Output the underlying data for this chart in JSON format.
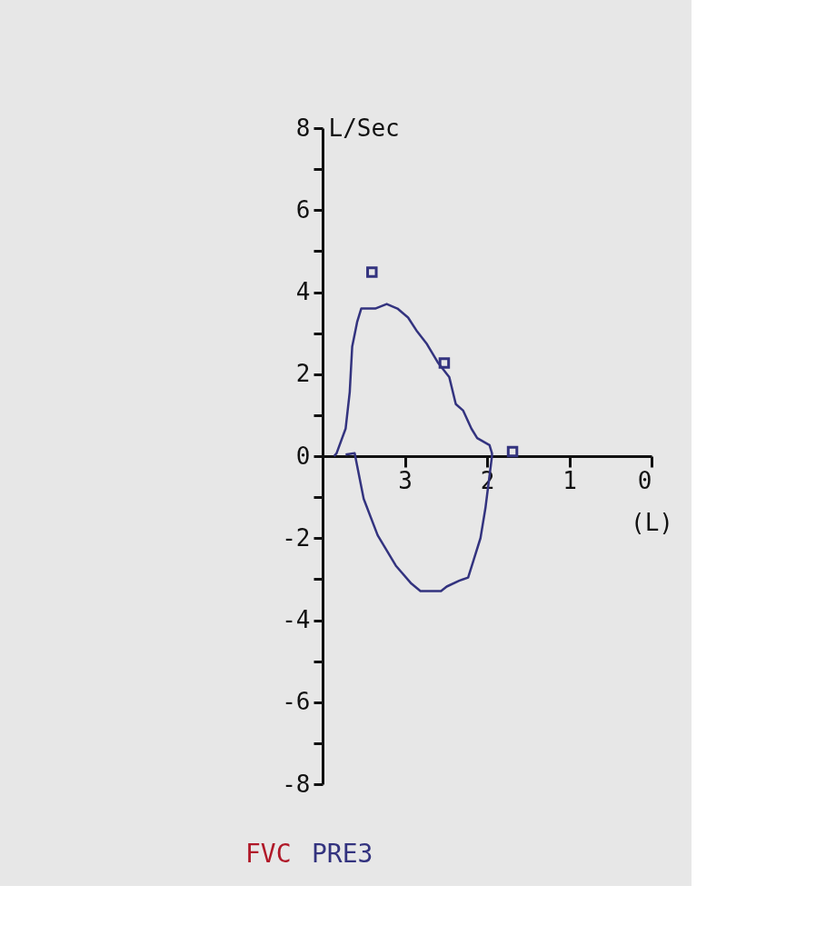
{
  "chart_data": {
    "type": "line",
    "ylabel": "L/Sec",
    "xlabel": "(L)",
    "xlim": [
      4,
      0
    ],
    "xticks": [
      3,
      2,
      1,
      0
    ],
    "ylim": [
      -8,
      8
    ],
    "yticks": [
      -8,
      {
        "value": -7,
        "label": null
      },
      -6,
      {
        "value": -5,
        "label": null
      },
      -4,
      {
        "value": -3,
        "label": null
      },
      -2,
      {
        "value": -1,
        "label": null
      },
      0,
      {
        "value": 1,
        "label": null
      },
      2,
      {
        "value": 3,
        "label": null
      },
      4,
      {
        "value": 5,
        "label": null
      },
      6,
      {
        "value": 7,
        "label": null
      },
      8
    ],
    "grid": false,
    "legend": "bottom left",
    "annotations": [
      "FVC"
    ],
    "series": [
      {
        "name": "PRE3",
        "color": "#33337f",
        "marker": "none",
        "line_style": "solid",
        "x": [
          3.86,
          3.83,
          3.72,
          3.67,
          3.64,
          3.58,
          3.53,
          3.36,
          3.22,
          3.09,
          2.96,
          2.85,
          2.73,
          2.6,
          2.46,
          2.38,
          2.29,
          2.19,
          2.12,
          1.97,
          1.94,
          1.94,
          2.02,
          2.08,
          2.16,
          2.23,
          2.34,
          2.49,
          2.56,
          2.81,
          2.92,
          3.11,
          3.33,
          3.5,
          3.61,
          3.72
        ],
        "values": [
          0,
          0.07,
          0.67,
          1.56,
          2.67,
          3.27,
          3.6,
          3.6,
          3.71,
          3.6,
          3.38,
          3.04,
          2.73,
          2.29,
          1.93,
          1.27,
          1.11,
          0.67,
          0.44,
          0.27,
          0.07,
          0,
          -1.27,
          -2.0,
          -2.51,
          -2.96,
          -3.04,
          -3.18,
          -3.29,
          -3.29,
          -3.11,
          -2.67,
          -1.93,
          -1.04,
          0.07,
          0.04
        ]
      },
      {
        "type": "scatter",
        "color": "#33337f",
        "marker": "square",
        "x": [
          3.4,
          2.52,
          1.69
        ],
        "values": [
          4.49,
          2.27,
          0.11
        ]
      }
    ]
  }
}
